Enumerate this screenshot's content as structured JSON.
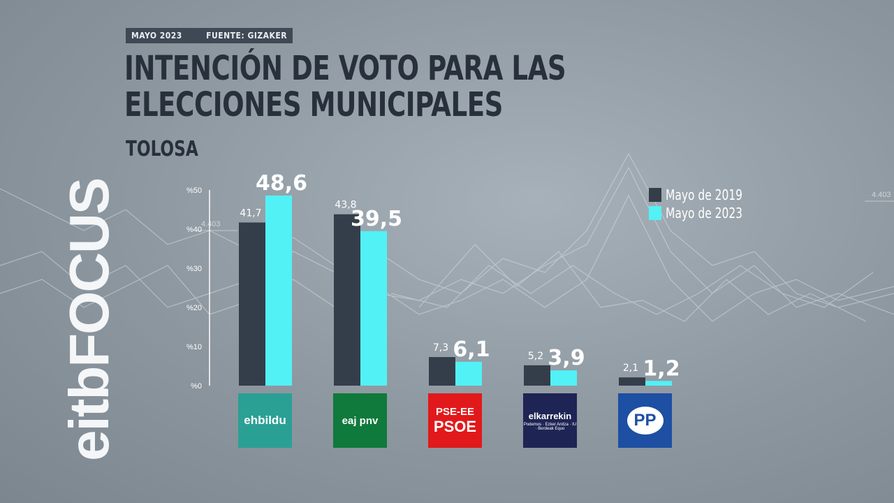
{
  "header": {
    "date": "MAYO 2023",
    "source": "FUENTE: GIZAKER"
  },
  "title": "INTENCIÓN DE VOTO PARA LAS ELECCIONES MUNICIPALES",
  "subtitle": "TOLOSA",
  "brand": "eitbFOCUS",
  "background_tick_labels": [
    "4.403",
    "4.403"
  ],
  "colors": {
    "series_2019": "#343d4a",
    "series_2023": "#52f1f6",
    "background": "#8d979f"
  },
  "legend": [
    "Mayo de 2019",
    "Mayo de 2023"
  ],
  "party_logos": [
    {
      "party": "ehbildu",
      "text": "ehbildu",
      "color": "#2aa095"
    },
    {
      "party": "eaj-pnv",
      "text": "eaj pnv",
      "color": "#0f7a3b"
    },
    {
      "party": "pse-ee-psoe",
      "line1": "PSE-EE",
      "line2": "PSOE",
      "color": "#e1191b"
    },
    {
      "party": "elkarrekin",
      "text": "elkarrekin",
      "subtext": "Podemos · Ezker Anitza · IU · Berdeak Equo",
      "color": "#1e2554"
    },
    {
      "party": "pp",
      "text": "PP",
      "color": "#1d4fa3"
    }
  ],
  "chart_data": {
    "type": "bar",
    "categories": [
      "ehbildu",
      "eaj pnv",
      "PSE-EE PSOE",
      "elkarrekin",
      "PP"
    ],
    "series": [
      {
        "name": "Mayo de 2019",
        "values": [
          41.7,
          43.8,
          7.3,
          5.2,
          2.1
        ],
        "labels": [
          "41,7",
          "43,8",
          "7,3",
          "5,2",
          "2,1"
        ]
      },
      {
        "name": "Mayo de 2023",
        "values": [
          48.6,
          39.5,
          6.1,
          3.9,
          1.2
        ],
        "labels": [
          "48,6",
          "39,5",
          "6,1",
          "3,9",
          "1,2"
        ]
      }
    ],
    "yticks": [
      "%0",
      "%10",
      "%20",
      "%30",
      "%40",
      "%50"
    ],
    "ylim": [
      0,
      50
    ],
    "grid": false,
    "legend_position": "top-right"
  }
}
